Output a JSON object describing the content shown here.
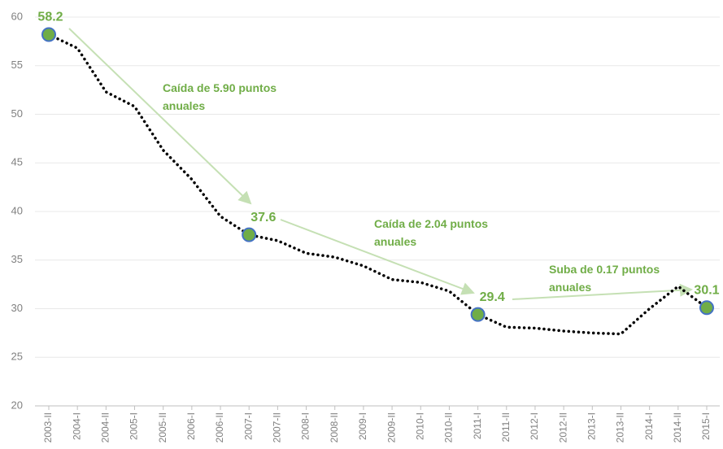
{
  "chart_data": {
    "type": "line",
    "categories": [
      "2003-II",
      "2004-I",
      "2004-II",
      "2005-I",
      "2005-II",
      "2006-I",
      "2006-II",
      "2007-I",
      "2007-II",
      "2008-I",
      "2008-II",
      "2009-I",
      "2009-II",
      "2010-I",
      "2010-II",
      "2011-I",
      "2011-II",
      "2012-I",
      "2012-II",
      "2013-I",
      "2013-II",
      "2014-I",
      "2014-II",
      "2015-I"
    ],
    "series": [
      {
        "color": "#000000",
        "values": [
          58.2,
          56.8,
          52.3,
          50.8,
          46.3,
          43.3,
          39.5,
          37.6,
          37.0,
          35.7,
          35.3,
          34.4,
          33.0,
          32.7,
          31.8,
          29.4,
          28.1,
          28.0,
          27.7,
          27.5,
          27.4,
          30.0,
          32.3,
          30.1
        ]
      }
    ],
    "highlight_indices": [
      0,
      7,
      15,
      23
    ],
    "highlight_color": "#70ad47",
    "ylim": [
      20,
      60
    ],
    "yticks": [
      20,
      25,
      30,
      35,
      40,
      45,
      50,
      55,
      60
    ],
    "grid": true,
    "annotations": [
      "Caída de 5.90 puntos anuales",
      "Caída de 2.04 puntos anuales",
      "Suba de 0.17 puntos anuales"
    ]
  }
}
